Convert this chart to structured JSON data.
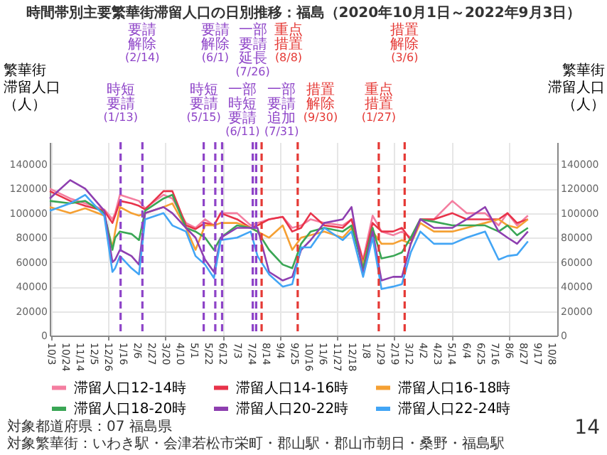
{
  "chart_data": {
    "type": "line",
    "title": "時間帯別主要繁華街滞留人口の日別推移：福島（2020年10月1日～2022年9月3日）",
    "ylabel": "繁華街滞留人口（人）",
    "y2label": "繁華街滞留人口（人）",
    "x": [
      "2020-10-01",
      "2020-10-31",
      "2020-11-22",
      "2020-12-20",
      "2021-01-01",
      "2021-01-05",
      "2021-01-12",
      "2021-01-29",
      "2021-02-09",
      "2021-02-18",
      "2021-03-17",
      "2021-03-30",
      "2021-04-19",
      "2021-05-03",
      "2021-05-17",
      "2021-05-30",
      "2021-06-09",
      "2021-07-03",
      "2021-07-23",
      "2021-08-02",
      "2021-08-19",
      "2021-09-08",
      "2021-09-22",
      "2021-10-05",
      "2021-10-19",
      "2021-11-08",
      "2021-12-05",
      "2021-12-18",
      "2022-01-04",
      "2022-01-18",
      "2022-01-31",
      "2022-02-17",
      "2022-03-02",
      "2022-03-15",
      "2022-03-29",
      "2022-04-18",
      "2022-05-15",
      "2022-06-05",
      "2022-07-02",
      "2022-07-22",
      "2022-08-04",
      "2022-08-18",
      "2022-09-03"
    ],
    "xlim": [
      "2020-10-01",
      "2022-10-16"
    ],
    "xticks": [
      {
        "value": "2020-10-03",
        "label": "10/3"
      },
      {
        "value": "2020-10-24",
        "label": "10/24"
      },
      {
        "value": "2020-11-14",
        "label": "11/14"
      },
      {
        "value": "2020-12-05",
        "label": "12/5"
      },
      {
        "value": "2020-12-26",
        "label": "12/26"
      },
      {
        "value": "2021-01-16",
        "label": "1/16"
      },
      {
        "value": "2021-02-06",
        "label": "2/6"
      },
      {
        "value": "2021-02-27",
        "label": "2/27"
      },
      {
        "value": "2021-03-20",
        "label": "3/20"
      },
      {
        "value": "2021-04-10",
        "label": "4/10"
      },
      {
        "value": "2021-05-01",
        "label": "5/1"
      },
      {
        "value": "2021-05-22",
        "label": "5/22"
      },
      {
        "value": "2021-06-12",
        "label": "6/12"
      },
      {
        "value": "2021-07-03",
        "label": "7/3"
      },
      {
        "value": "2021-07-24",
        "label": "7/24"
      },
      {
        "value": "2021-08-14",
        "label": "8/14"
      },
      {
        "value": "2021-09-04",
        "label": "9/4"
      },
      {
        "value": "2021-09-25",
        "label": "9/25"
      },
      {
        "value": "2021-10-16",
        "label": "10/16"
      },
      {
        "value": "2021-11-06",
        "label": "11/6"
      },
      {
        "value": "2021-11-27",
        "label": "11/27"
      },
      {
        "value": "2021-12-18",
        "label": "12/18"
      },
      {
        "value": "2022-01-08",
        "label": "1/8"
      },
      {
        "value": "2022-01-29",
        "label": "1/29"
      },
      {
        "value": "2022-02-19",
        "label": "2/19"
      },
      {
        "value": "2022-03-12",
        "label": "3/12"
      },
      {
        "value": "2022-04-02",
        "label": "4/2"
      },
      {
        "value": "2022-04-23",
        "label": "4/23"
      },
      {
        "value": "2022-05-14",
        "label": "5/14"
      },
      {
        "value": "2022-06-04",
        "label": "6/4"
      },
      {
        "value": "2022-06-25",
        "label": "6/25"
      },
      {
        "value": "2022-07-16",
        "label": "7/16"
      },
      {
        "value": "2022-08-06",
        "label": "8/6"
      },
      {
        "value": "2022-08-27",
        "label": "8/27"
      },
      {
        "value": "2022-09-17",
        "label": "9/17"
      },
      {
        "value": "2022-10-08",
        "label": "10/8"
      }
    ],
    "ylim": [
      0,
      158000
    ],
    "yticks": [
      0,
      20000,
      40000,
      60000,
      80000,
      100000,
      120000,
      140000
    ],
    "y2lim": [
      0,
      158000
    ],
    "y2ticks": [
      0,
      20000,
      40000,
      60000,
      80000,
      100000,
      120000,
      140000
    ],
    "series": [
      {
        "name": "滞留人口12-14時",
        "color": "#f47ea0",
        "values": [
          120000,
          112000,
          108000,
          103000,
          95000,
          100000,
          115000,
          112000,
          110000,
          104000,
          115000,
          112000,
          92000,
          88000,
          95000,
          90000,
          100000,
          100000,
          90000,
          92000,
          95000,
          97000,
          88000,
          90000,
          95000,
          92000,
          90000,
          95000,
          62000,
          98000,
          85000,
          82000,
          85000,
          80000,
          95000,
          95000,
          110000,
          100000,
          100000,
          90000,
          100000,
          90000,
          98000
        ]
      },
      {
        "name": "滞留人口14-16時",
        "color": "#e8334a",
        "values": [
          118000,
          110000,
          106000,
          102000,
          92000,
          98000,
          110000,
          108000,
          106000,
          103000,
          118000,
          118000,
          90000,
          87000,
          92000,
          90000,
          100000,
          95000,
          88000,
          90000,
          95000,
          97000,
          85000,
          88000,
          100000,
          90000,
          88000,
          95000,
          60000,
          92000,
          85000,
          85000,
          88000,
          78000,
          95000,
          95000,
          100000,
          95000,
          95000,
          95000,
          100000,
          92000,
          95000
        ]
      },
      {
        "name": "滞留人口16-18時",
        "color": "#f5a033",
        "values": [
          105000,
          100000,
          104000,
          98000,
          72000,
          85000,
          105000,
          100000,
          98000,
          100000,
          105000,
          108000,
          88000,
          70000,
          90000,
          90000,
          92000,
          92000,
          88000,
          85000,
          80000,
          90000,
          70000,
          80000,
          82000,
          85000,
          80000,
          88000,
          58000,
          85000,
          75000,
          75000,
          78000,
          75000,
          92000,
          85000,
          85000,
          88000,
          92000,
          95000,
          90000,
          88000,
          95000
        ]
      },
      {
        "name": "滞留人口18-20時",
        "color": "#3aa655",
        "values": [
          110000,
          108000,
          110000,
          100000,
          70000,
          80000,
          85000,
          83000,
          78000,
          102000,
          112000,
          115000,
          88000,
          85000,
          80000,
          70000,
          80000,
          90000,
          88000,
          85000,
          70000,
          58000,
          55000,
          75000,
          85000,
          88000,
          85000,
          90000,
          55000,
          88000,
          63000,
          65000,
          68000,
          80000,
          95000,
          93000,
          90000,
          90000,
          90000,
          85000,
          90000,
          82000,
          88000
        ]
      },
      {
        "name": "滞留人口20-22時",
        "color": "#8e3fb0",
        "values": [
          112000,
          127000,
          120000,
          102000,
          60000,
          62000,
          70000,
          65000,
          58000,
          100000,
          105000,
          100000,
          88000,
          80000,
          62000,
          52000,
          80000,
          88000,
          88000,
          88000,
          52000,
          45000,
          48000,
          70000,
          78000,
          92000,
          95000,
          105000,
          50000,
          85000,
          45000,
          48000,
          48000,
          75000,
          95000,
          88000,
          88000,
          95000,
          105000,
          85000,
          80000,
          75000,
          85000
        ]
      },
      {
        "name": "滞留人口22-24時",
        "color": "#42a5f5",
        "values": [
          102000,
          108000,
          115000,
          98000,
          52000,
          55000,
          65000,
          55000,
          50000,
          95000,
          100000,
          90000,
          85000,
          65000,
          58000,
          47000,
          78000,
          80000,
          85000,
          65000,
          50000,
          40000,
          42000,
          72000,
          72000,
          88000,
          78000,
          85000,
          48000,
          80000,
          38000,
          40000,
          42000,
          68000,
          85000,
          75000,
          75000,
          80000,
          85000,
          62000,
          65000,
          66000,
          77000
        ]
      }
    ],
    "ref_lines": [
      {
        "axis": "x",
        "value": "2021-01-13",
        "label": "時短要請(1/13)",
        "color": "#8e44c8",
        "line_style": "dashed"
      },
      {
        "axis": "x",
        "value": "2021-02-14",
        "label": "要請解除(2/14)",
        "color": "#8e44c8",
        "line_style": "dashed"
      },
      {
        "axis": "x",
        "value": "2021-05-15",
        "label": "時短要請(5/15)",
        "color": "#8e44c8",
        "line_style": "dashed"
      },
      {
        "axis": "x",
        "value": "2021-06-01",
        "label": "要請解除(6/1)",
        "color": "#8e44c8",
        "line_style": "dashed"
      },
      {
        "axis": "x",
        "value": "2021-06-11",
        "label": "一部時短要請(6/11)",
        "color": "#8e44c8",
        "line_style": "dashed"
      },
      {
        "axis": "x",
        "value": "2021-07-26",
        "label": "一部要請延長(7/26)",
        "color": "#8e44c8",
        "line_style": "dashed"
      },
      {
        "axis": "x",
        "value": "2021-07-31",
        "label": "一部要請追加(7/31)",
        "color": "#8e44c8",
        "line_style": "dashed"
      },
      {
        "axis": "x",
        "value": "2021-08-08",
        "label": "重点措置(8/8)",
        "color": "#e53935",
        "line_style": "dashed"
      },
      {
        "axis": "x",
        "value": "2021-09-30",
        "label": "措置解除(9/30)",
        "color": "#e53935",
        "line_style": "dashed"
      },
      {
        "axis": "x",
        "value": "2022-01-27",
        "label": "重点措置(1/27)",
        "color": "#e53935",
        "line_style": "dashed"
      },
      {
        "axis": "x",
        "value": "2022-03-06",
        "label": "措置解除(3/6)",
        "color": "#e53935",
        "line_style": "dashed"
      }
    ],
    "grid": true,
    "legend": "bottom",
    "annotations": [
      "対象都道府県：07 福島県",
      "対象繁華街：いわき駅・会津若松市栄町・郡山駅・郡山市朝日・桑野・福島駅",
      "14"
    ]
  }
}
